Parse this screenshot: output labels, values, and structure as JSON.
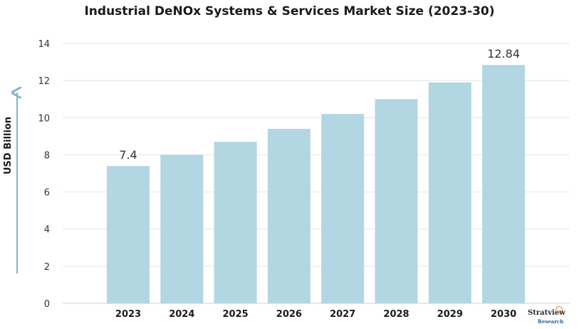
{
  "chart_data": {
    "type": "bar",
    "title": "Industrial DeNOx Systems & Services Market Size (2023-30)",
    "ylabel": "USD Billion",
    "xlabel": "",
    "categories": [
      "2023",
      "2024",
      "2025",
      "2026",
      "2027",
      "2028",
      "2029",
      "2030"
    ],
    "values": [
      7.4,
      8.0,
      8.7,
      9.4,
      10.2,
      11.0,
      11.9,
      12.84
    ],
    "data_labels": [
      {
        "category": "2023",
        "text": "7.4"
      },
      {
        "category": "2030",
        "text": "12.84"
      }
    ],
    "ylim": [
      0,
      14
    ],
    "yticks": [
      0,
      2,
      4,
      6,
      8,
      10,
      12,
      14
    ],
    "grid": true,
    "bar_color": "#b3d6e3",
    "axis_arrow_color": "#7fb8c9"
  },
  "logo": {
    "word": "Stratview",
    "sub": "Research"
  }
}
